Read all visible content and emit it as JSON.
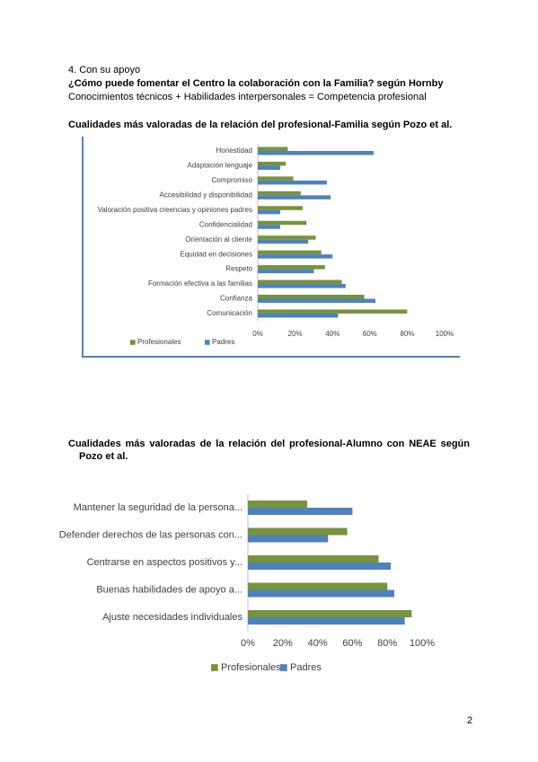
{
  "section": "4. Con su apoyo",
  "question": "¿Cómo puede fomentar el Centro la colaboración con la Familia? según Hornby",
  "formula": "Conocimientos técnicos + Habilidades interpersonales = Competencia profesional",
  "heading_1": "Cualidades más valoradas de la relación del profesional-Familia según Pozo et al.",
  "heading_2": "Cualidades más valoradas de la relación del profesional-Alumno con NEAE según Pozo et al.",
  "page_number": "2",
  "chart_data": [
    {
      "type": "bar",
      "orientation": "horizontal",
      "categories": [
        "Honestidad",
        "Adaptación lenguaje",
        "Compromiso",
        "Accesibilidad y disponibilidad",
        "Valoración positiva creencias y opiniones padres",
        "Confidencialidad",
        "Orientación al cliente",
        "Equidad en decisiones",
        "Respeto",
        "Formación efectiva a las familias",
        "Confianza",
        "Comunicación"
      ],
      "series": [
        {
          "name": "Profesionales",
          "color": "#77933c",
          "values": [
            16,
            15,
            19,
            23,
            24,
            26,
            31,
            34,
            36,
            45,
            57,
            80
          ]
        },
        {
          "name": "Padres",
          "color": "#4f81bd",
          "values": [
            62,
            12,
            37,
            39,
            12,
            12,
            27,
            40,
            30,
            47,
            63,
            43
          ]
        }
      ],
      "xlim": [
        0,
        100
      ],
      "xticks": [
        {
          "value": 0,
          "label": "0%"
        },
        {
          "value": 20,
          "label": "20%"
        },
        {
          "value": 40,
          "label": "40%"
        },
        {
          "value": 60,
          "label": "60%"
        },
        {
          "value": 80,
          "label": "80%"
        },
        {
          "value": 100,
          "label": "100%"
        }
      ],
      "legend": "bottom-left"
    },
    {
      "type": "bar",
      "orientation": "horizontal",
      "categories": [
        "Mantener la seguridad de la persona...",
        "Defender derechos de las personas con...",
        "Centrarse en aspectos positivos y...",
        "Buenas habilidades de apoyo a...",
        "Ajuste necesidades individuales"
      ],
      "series": [
        {
          "name": "Profesionales",
          "color": "#77933c",
          "values": [
            34,
            57,
            75,
            80,
            94
          ]
        },
        {
          "name": "Padres",
          "color": "#4f81bd",
          "values": [
            60,
            46,
            82,
            84,
            90
          ]
        }
      ],
      "xlim": [
        0,
        100
      ],
      "xticks": [
        {
          "value": 0,
          "label": "0%"
        },
        {
          "value": 20,
          "label": "20%"
        },
        {
          "value": 40,
          "label": "40%"
        },
        {
          "value": 60,
          "label": "60%"
        },
        {
          "value": 80,
          "label": "80%"
        },
        {
          "value": 100,
          "label": "100%"
        }
      ],
      "legend": "bottom"
    }
  ]
}
